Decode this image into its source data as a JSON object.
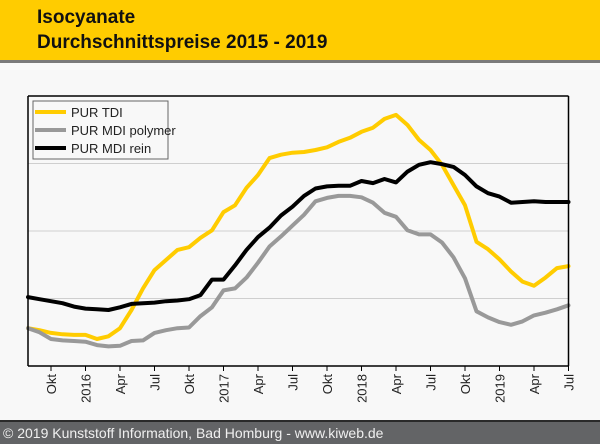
{
  "header": {
    "title_line1": "Isocyanate",
    "title_line2": "Durchschnittspreise 2015 - 2019"
  },
  "footer": {
    "copyright": "© 2019 Kunststoff Information, Bad Homburg - www.kiweb.de"
  },
  "colors": {
    "header_bg": "#ffcc00",
    "footer_bg": "#636466",
    "tdi": "#ffcc00",
    "mdi_polymer": "#999999",
    "mdi_rein": "#000000"
  },
  "chart_data": {
    "type": "line",
    "title": "Isocyanate Durchschnittspreise 2015 - 2019",
    "xlabel": "",
    "ylabel": "",
    "y_axis_note": "no y tick labels shown; relative index scale with gridlines at 1, 2, 3",
    "ylim": [
      0,
      4
    ],
    "gridlines_y": [
      1,
      2,
      3
    ],
    "grid": true,
    "legend_position": "top-left",
    "x_start": "2015-08",
    "x_end": "2019-07",
    "x_ticks": [
      {
        "month_index": 2,
        "label": "Okt"
      },
      {
        "month_index": 5,
        "label": "2016"
      },
      {
        "month_index": 8,
        "label": "Apr"
      },
      {
        "month_index": 11,
        "label": "Jul"
      },
      {
        "month_index": 14,
        "label": "Okt"
      },
      {
        "month_index": 17,
        "label": "2017"
      },
      {
        "month_index": 20,
        "label": "Apr"
      },
      {
        "month_index": 23,
        "label": "Jul"
      },
      {
        "month_index": 26,
        "label": "Okt"
      },
      {
        "month_index": 29,
        "label": "2018"
      },
      {
        "month_index": 32,
        "label": "Apr"
      },
      {
        "month_index": 35,
        "label": "Jul"
      },
      {
        "month_index": 38,
        "label": "Okt"
      },
      {
        "month_index": 41,
        "label": "2019"
      },
      {
        "month_index": 44,
        "label": "Apr"
      },
      {
        "month_index": 47,
        "label": "Jul"
      }
    ],
    "series": [
      {
        "name": "PUR TDI",
        "color": "#ffcc00",
        "values": [
          0.56,
          0.53,
          0.49,
          0.47,
          0.46,
          0.46,
          0.4,
          0.44,
          0.56,
          0.83,
          1.15,
          1.42,
          1.57,
          1.72,
          1.76,
          1.9,
          2.01,
          2.28,
          2.38,
          2.64,
          2.83,
          3.08,
          3.13,
          3.16,
          3.17,
          3.2,
          3.24,
          3.32,
          3.38,
          3.47,
          3.53,
          3.66,
          3.72,
          3.57,
          3.35,
          3.2,
          2.98,
          2.68,
          2.38,
          1.84,
          1.73,
          1.58,
          1.4,
          1.25,
          1.19,
          1.31,
          1.45,
          1.48
        ]
      },
      {
        "name": "PUR MDI polymer",
        "color": "#999999",
        "values": [
          0.56,
          0.5,
          0.4,
          0.38,
          0.37,
          0.36,
          0.31,
          0.29,
          0.3,
          0.37,
          0.38,
          0.49,
          0.53,
          0.56,
          0.57,
          0.74,
          0.87,
          1.12,
          1.15,
          1.31,
          1.53,
          1.77,
          1.92,
          2.08,
          2.24,
          2.44,
          2.49,
          2.52,
          2.52,
          2.5,
          2.42,
          2.27,
          2.21,
          2.01,
          1.95,
          1.95,
          1.83,
          1.61,
          1.3,
          0.81,
          0.72,
          0.65,
          0.61,
          0.66,
          0.75,
          0.79,
          0.84,
          0.9
        ]
      },
      {
        "name": "PUR MDI rein",
        "color": "#000000",
        "values": [
          1.02,
          0.99,
          0.96,
          0.93,
          0.88,
          0.85,
          0.84,
          0.83,
          0.87,
          0.92,
          0.93,
          0.94,
          0.96,
          0.97,
          0.99,
          1.05,
          1.28,
          1.28,
          1.49,
          1.72,
          1.91,
          2.05,
          2.23,
          2.36,
          2.52,
          2.63,
          2.66,
          2.67,
          2.67,
          2.74,
          2.71,
          2.77,
          2.72,
          2.88,
          2.98,
          3.02,
          2.99,
          2.95,
          2.83,
          2.66,
          2.56,
          2.51,
          2.42,
          2.43,
          2.44,
          2.43,
          2.43,
          2.43
        ]
      }
    ]
  }
}
